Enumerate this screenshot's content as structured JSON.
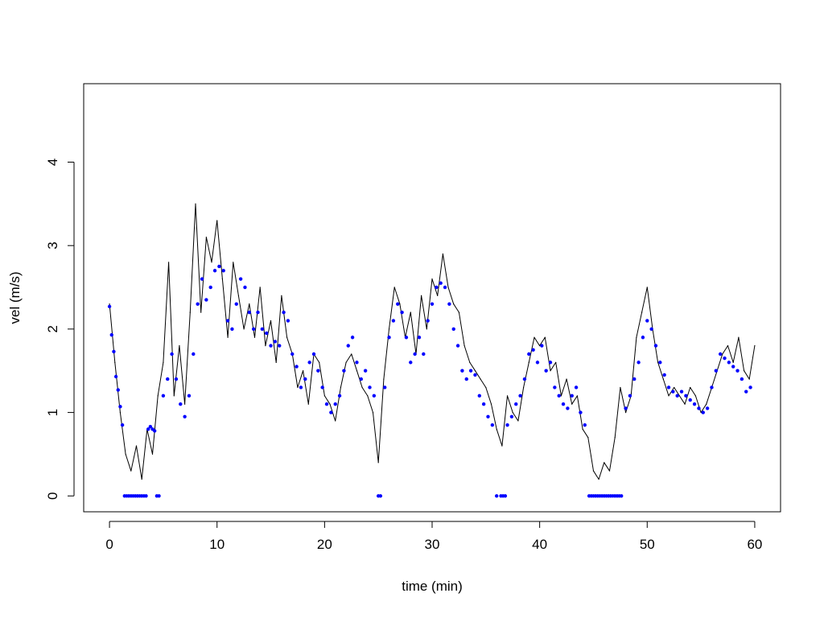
{
  "chart_data": {
    "type": "line",
    "title": "",
    "xlabel": "time (min)",
    "ylabel": "vel (m/s)",
    "xlim": [
      -2.4,
      62.4
    ],
    "ylim": [
      -0.19,
      4.94
    ],
    "xticks": [
      0,
      10,
      20,
      30,
      40,
      50,
      60
    ],
    "yticks": [
      0,
      1,
      2,
      3,
      4
    ],
    "grid": false,
    "legend": "none",
    "colors": {
      "raw_line": "#000000",
      "smoothed_points": "#0000ff",
      "frame": "#000000"
    },
    "series": [
      {
        "style": "line",
        "color": "#000000",
        "x": [
          0,
          0.5,
          1,
          1.5,
          2,
          2.5,
          3,
          3.5,
          4,
          4.5,
          5,
          5.5,
          6,
          6.5,
          7,
          7.5,
          8,
          8.5,
          9,
          9.5,
          10,
          10.5,
          11,
          11.5,
          12,
          12.5,
          13,
          13.5,
          14,
          14.5,
          15,
          15.5,
          16,
          16.5,
          17,
          17.5,
          18,
          18.5,
          19,
          19.5,
          20,
          20.5,
          21,
          21.5,
          22,
          22.5,
          23,
          23.5,
          24,
          24.5,
          25,
          25.5,
          26,
          26.5,
          27,
          27.5,
          28,
          28.5,
          29,
          29.5,
          30,
          30.5,
          31,
          31.5,
          32,
          32.5,
          33,
          33.5,
          34,
          34.5,
          35,
          35.5,
          36,
          36.5,
          37,
          37.5,
          38,
          38.5,
          39,
          39.5,
          40,
          40.5,
          41,
          41.5,
          42,
          42.5,
          43,
          43.5,
          44,
          44.5,
          45,
          45.5,
          46,
          46.5,
          47,
          47.5,
          48,
          48.5,
          49,
          49.5,
          50,
          50.5,
          51,
          51.5,
          52,
          52.5,
          53,
          53.5,
          54,
          54.5,
          55,
          55.5,
          56,
          56.5,
          57,
          57.5,
          58,
          58.5,
          59,
          59.5,
          60
        ],
        "y": [
          2.3,
          1.6,
          1.0,
          0.5,
          0.3,
          0.6,
          0.2,
          0.8,
          0.5,
          1.2,
          1.6,
          2.8,
          1.2,
          1.8,
          1.1,
          2.2,
          3.5,
          2.2,
          3.1,
          2.8,
          3.3,
          2.6,
          1.9,
          2.8,
          2.4,
          2.0,
          2.3,
          1.9,
          2.5,
          1.8,
          2.1,
          1.6,
          2.4,
          1.9,
          1.7,
          1.3,
          1.5,
          1.1,
          1.7,
          1.6,
          1.2,
          1.1,
          0.9,
          1.3,
          1.6,
          1.7,
          1.5,
          1.3,
          1.2,
          1.0,
          0.4,
          1.4,
          2.0,
          2.5,
          2.3,
          1.9,
          2.2,
          1.7,
          2.4,
          2.0,
          2.6,
          2.4,
          2.9,
          2.5,
          2.3,
          2.2,
          1.8,
          1.6,
          1.5,
          1.4,
          1.3,
          1.1,
          0.8,
          0.6,
          1.2,
          1.0,
          0.9,
          1.3,
          1.6,
          1.9,
          1.8,
          1.9,
          1.5,
          1.6,
          1.2,
          1.4,
          1.1,
          1.2,
          0.8,
          0.7,
          0.3,
          0.2,
          0.4,
          0.3,
          0.7,
          1.3,
          1.0,
          1.2,
          1.9,
          2.2,
          2.5,
          2.0,
          1.6,
          1.4,
          1.2,
          1.3,
          1.2,
          1.1,
          1.3,
          1.2,
          1.0,
          1.1,
          1.3,
          1.5,
          1.7,
          1.8,
          1.6,
          1.9,
          1.5,
          1.4,
          1.8
        ]
      },
      {
        "style": "points",
        "color": "#0000ff",
        "x": [
          0,
          0.2,
          0.4,
          0.6,
          0.8,
          1.0,
          1.2,
          1.4,
          1.6,
          1.8,
          2.0,
          2.2,
          2.4,
          2.6,
          2.8,
          3.0,
          3.2,
          3.4,
          3.6,
          3.8,
          4.0,
          4.2,
          4.4,
          4.6,
          5.0,
          5.4,
          5.8,
          6.2,
          6.6,
          7.0,
          7.4,
          7.8,
          8.2,
          8.6,
          9.0,
          9.4,
          9.8,
          10.2,
          10.6,
          11.0,
          11.4,
          11.8,
          12.2,
          12.6,
          13.0,
          13.4,
          13.8,
          14.2,
          14.6,
          15.0,
          15.4,
          15.8,
          16.2,
          16.6,
          17.0,
          17.4,
          17.8,
          18.2,
          18.6,
          19.0,
          19.4,
          19.8,
          20.2,
          20.6,
          21.0,
          21.4,
          21.8,
          22.2,
          22.6,
          23.0,
          23.4,
          23.8,
          24.2,
          24.6,
          25.0,
          25.2,
          25.6,
          26.0,
          26.4,
          26.8,
          27.2,
          27.6,
          28.0,
          28.4,
          28.8,
          29.2,
          29.6,
          30.0,
          30.4,
          30.8,
          31.2,
          31.6,
          32.0,
          32.4,
          32.8,
          33.2,
          33.6,
          34.0,
          34.4,
          34.8,
          35.2,
          35.6,
          36.0,
          36.4,
          36.6,
          36.8,
          37.0,
          37.4,
          37.8,
          38.2,
          38.6,
          39.0,
          39.4,
          39.8,
          40.2,
          40.6,
          41.0,
          41.4,
          41.8,
          42.2,
          42.6,
          43.0,
          43.4,
          43.8,
          44.2,
          44.6,
          44.8,
          45.0,
          45.2,
          45.4,
          45.6,
          45.8,
          46.0,
          46.2,
          46.4,
          46.6,
          46.8,
          47.0,
          47.2,
          47.4,
          47.6,
          48.0,
          48.4,
          48.8,
          49.2,
          49.6,
          50.0,
          50.4,
          50.8,
          51.2,
          51.6,
          52.0,
          52.4,
          52.8,
          53.2,
          53.6,
          54.0,
          54.4,
          54.8,
          55.2,
          55.6,
          56.0,
          56.4,
          56.8,
          57.2,
          57.6,
          58.0,
          58.4,
          58.8,
          59.2,
          59.6
        ],
        "y": [
          2.27,
          1.93,
          1.73,
          1.43,
          1.27,
          1.07,
          0.85,
          0,
          0,
          0,
          0,
          0,
          0,
          0,
          0,
          0,
          0,
          0,
          0.8,
          0.83,
          0.8,
          0.78,
          0,
          0,
          1.2,
          1.4,
          1.7,
          1.4,
          1.1,
          0.95,
          1.2,
          1.7,
          2.3,
          2.6,
          2.35,
          2.5,
          2.7,
          2.75,
          2.7,
          2.1,
          2.0,
          2.3,
          2.6,
          2.5,
          2.2,
          2.0,
          2.2,
          2.0,
          1.95,
          1.8,
          1.85,
          1.8,
          2.2,
          2.1,
          1.7,
          1.55,
          1.3,
          1.4,
          1.6,
          1.7,
          1.5,
          1.3,
          1.1,
          1.0,
          1.1,
          1.2,
          1.5,
          1.8,
          1.9,
          1.6,
          1.4,
          1.5,
          1.3,
          1.2,
          0,
          0,
          1.3,
          1.9,
          2.1,
          2.3,
          2.2,
          1.9,
          1.6,
          1.7,
          1.9,
          1.7,
          2.1,
          2.3,
          2.5,
          2.55,
          2.5,
          2.3,
          2.0,
          1.8,
          1.5,
          1.4,
          1.5,
          1.45,
          1.2,
          1.1,
          0.95,
          0.85,
          0,
          0,
          0,
          0,
          0.85,
          0.95,
          1.1,
          1.2,
          1.4,
          1.7,
          1.75,
          1.6,
          1.8,
          1.5,
          1.6,
          1.3,
          1.2,
          1.1,
          1.05,
          1.2,
          1.3,
          1.0,
          0.85,
          0,
          0,
          0,
          0,
          0,
          0,
          0,
          0,
          0,
          0,
          0,
          0,
          0,
          0,
          0,
          0,
          1.05,
          1.2,
          1.4,
          1.6,
          1.9,
          2.1,
          2.0,
          1.8,
          1.6,
          1.45,
          1.3,
          1.25,
          1.2,
          1.25,
          1.2,
          1.15,
          1.1,
          1.05,
          1.0,
          1.05,
          1.3,
          1.5,
          1.7,
          1.65,
          1.6,
          1.55,
          1.5,
          1.4,
          1.25,
          1.3
        ]
      }
    ]
  }
}
